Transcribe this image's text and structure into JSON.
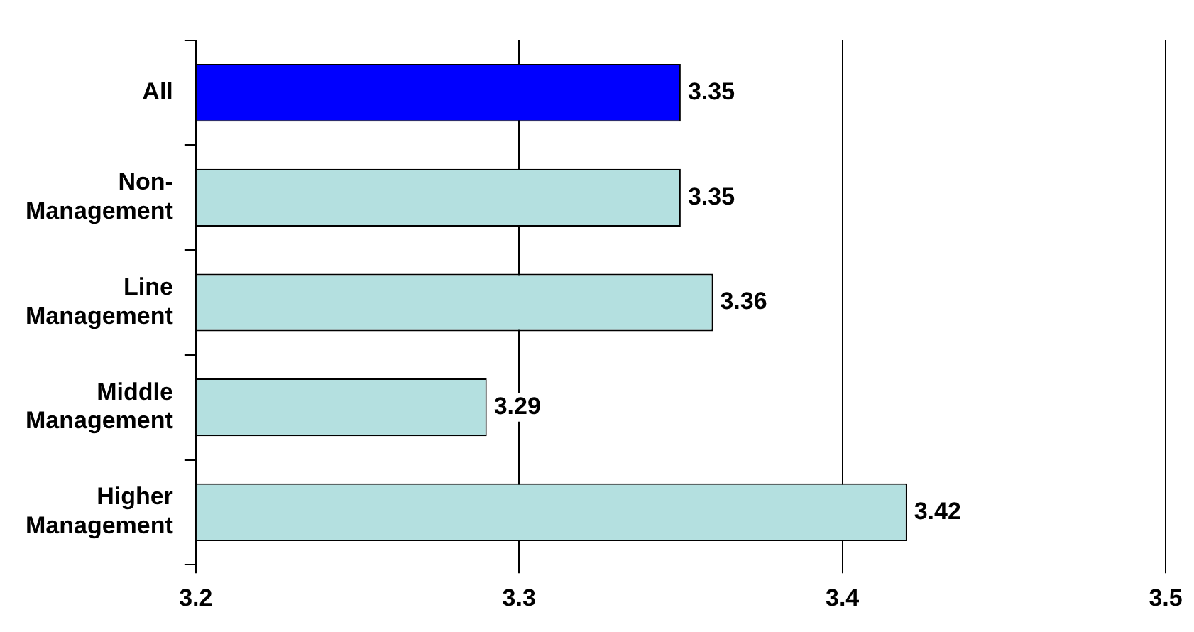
{
  "chart_data": {
    "type": "bar",
    "orientation": "horizontal",
    "categories": [
      "All",
      "Non-Management",
      "Line Management",
      "Middle Management",
      "Higher Management"
    ],
    "values": [
      3.35,
      3.35,
      3.36,
      3.29,
      3.42
    ],
    "colors": [
      "#0000ff",
      "#b4e0e0",
      "#b4e0e0",
      "#b4e0e0",
      "#b4e0e0"
    ],
    "xlim": [
      3.2,
      3.5
    ],
    "xticks": [
      3.2,
      3.3,
      3.4,
      3.5
    ],
    "grid": "x",
    "data_labels": true,
    "legend": false
  }
}
